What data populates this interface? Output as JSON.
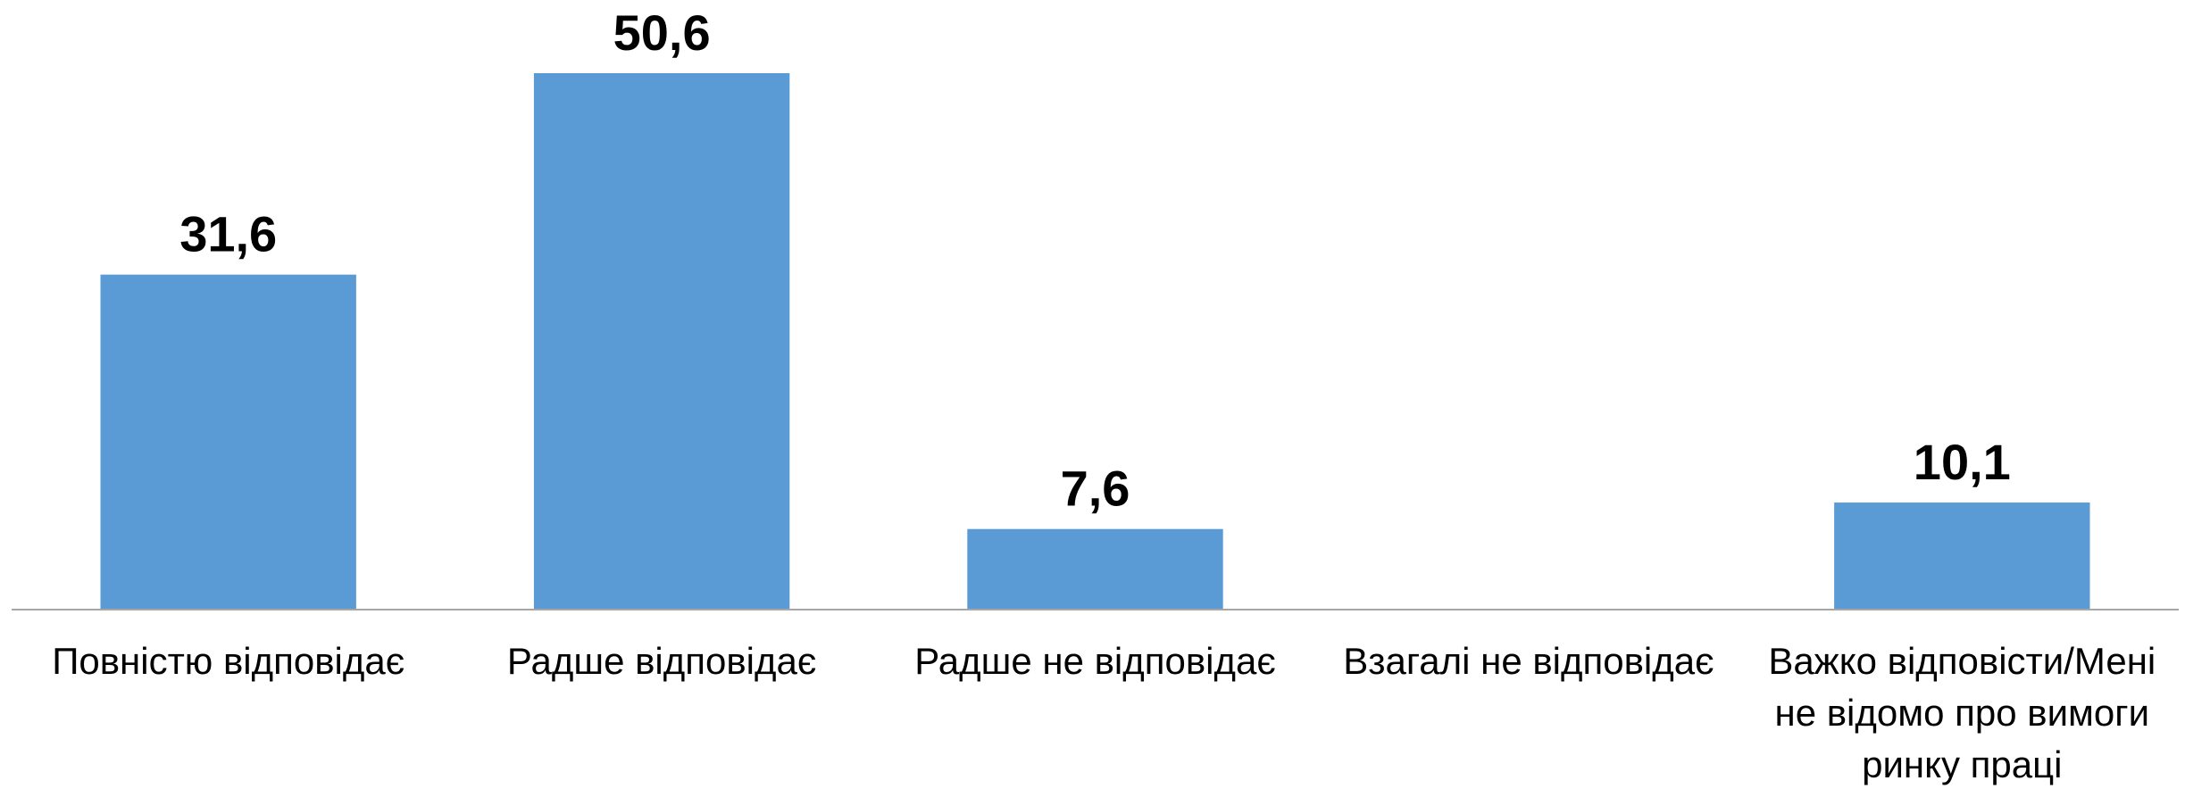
{
  "chart_data": {
    "type": "bar",
    "categories": [
      "Повністю відповідає",
      "Радше відповідає",
      "Радше не відповідає",
      "Взагалі не відповідає",
      "Важко відповісти/Мені не відомо про вимоги ринку праці"
    ],
    "values": [
      31.6,
      50.6,
      7.6,
      null,
      10.1
    ],
    "value_labels": [
      "31,6",
      "50,6",
      "7,6",
      null,
      "10,1"
    ],
    "color": "#5b9bd5"
  }
}
